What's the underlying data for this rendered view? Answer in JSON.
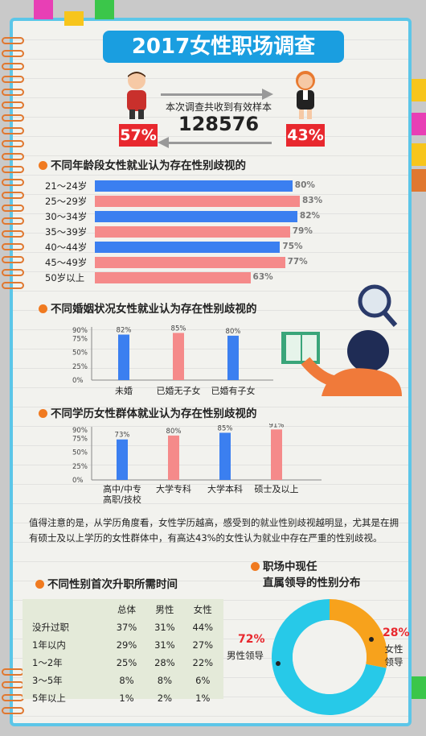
{
  "title": "2017女性职场调查",
  "survey": {
    "text": "本次调查共收到有效样本",
    "count": "128576",
    "male_pct": "57%",
    "female_pct": "43%"
  },
  "sections": {
    "age": "不同年龄段女性就业认为存在性别歧视的",
    "marriage": "不同婚姻状况女性就业认为存在性别歧视的",
    "education": "不同学历女性群体就业认为存在性别歧视的",
    "promotion": "不同性别首次升职所需时间",
    "leader_line1": "职场中现任",
    "leader_line2": "直属领导的性别分布"
  },
  "paragraph": "值得注意的是，从学历角度看，女性学历越高，感受到的就业性别歧视越明显，尤其是在拥有硕士及以上学历的女性群体中，有高达43%的女性认为就业中存在严重的性别歧视。",
  "colors": {
    "blue": "#3b7ff0",
    "pink": "#f58a8a",
    "orange": "#f7a21c",
    "cyan": "#27c9e8",
    "accent": "#f07a20",
    "red": "#e8282e"
  },
  "chart_data": [
    {
      "type": "bar",
      "orientation": "horizontal",
      "categories": [
        "21～24岁",
        "25～29岁",
        "30～34岁",
        "35～39岁",
        "40～44岁",
        "45～49岁",
        "50岁以上"
      ],
      "values": [
        80,
        83,
        82,
        79,
        75,
        77,
        63
      ],
      "labels": [
        "80%",
        "83%",
        "82%",
        "79%",
        "75%",
        "77%",
        "63%"
      ],
      "colors": [
        "#3b7ff0",
        "#f58a8a",
        "#3b7ff0",
        "#f58a8a",
        "#3b7ff0",
        "#f58a8a",
        "#f58a8a"
      ]
    },
    {
      "type": "bar",
      "categories": [
        "未婚",
        "已婚无子女",
        "已婚有子女"
      ],
      "values": [
        82,
        85,
        80
      ],
      "labels": [
        "82%",
        "85%",
        "80%"
      ],
      "colors": [
        "#3b7ff0",
        "#f58a8a",
        "#3b7ff0"
      ],
      "yticks": [
        "90%",
        "75%",
        "50%",
        "25%",
        "0%"
      ],
      "ylim": [
        0,
        90
      ]
    },
    {
      "type": "bar",
      "categories": [
        "高中/中专\n高职/技校",
        "大学专科",
        "大学本科",
        "硕士及以上"
      ],
      "values": [
        73,
        80,
        85,
        91
      ],
      "labels": [
        "73%",
        "80%",
        "85%",
        "91%"
      ],
      "colors": [
        "#3b7ff0",
        "#f58a8a",
        "#3b7ff0",
        "#f58a8a"
      ],
      "yticks": [
        "90%",
        "75%",
        "50%",
        "25%",
        "0%"
      ],
      "ylim": [
        0,
        90
      ]
    },
    {
      "type": "table",
      "columns": [
        "",
        "总体",
        "男性",
        "女性"
      ],
      "rows": [
        [
          "没升过职",
          "37%",
          "31%",
          "44%"
        ],
        [
          "1年以内",
          "29%",
          "31%",
          "27%"
        ],
        [
          "1～2年",
          "25%",
          "28%",
          "22%"
        ],
        [
          "3～5年",
          "8%",
          "8%",
          "6%"
        ],
        [
          "5年以上",
          "1%",
          "2%",
          "1%"
        ]
      ]
    },
    {
      "type": "pie",
      "donut": true,
      "slices": [
        {
          "label": "男性领导",
          "value": 72,
          "pct": "72%",
          "color": "#27c9e8"
        },
        {
          "label": "女性领导",
          "value": 28,
          "pct": "28%",
          "color": "#f7a21c"
        }
      ]
    }
  ]
}
